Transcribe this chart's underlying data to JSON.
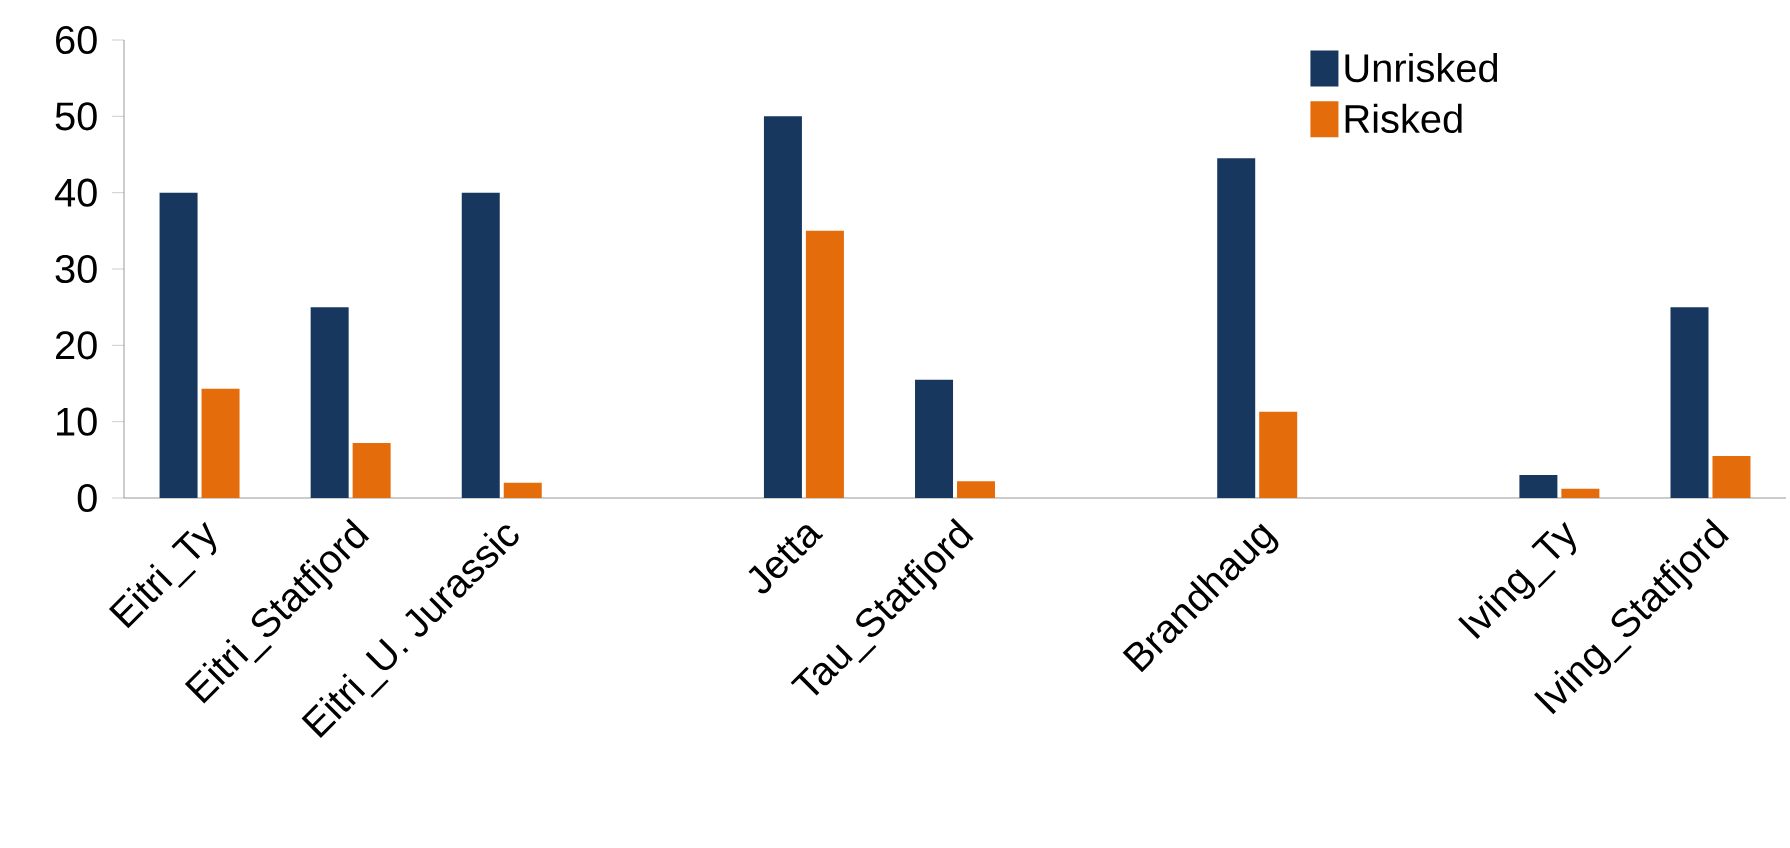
{
  "chart_data": {
    "type": "bar",
    "categories": [
      "Eitri_Ty",
      "Eitri_Statfjord",
      "Eitri_U. Jurassic",
      null,
      "Jetta",
      "Tau_Statfjord",
      null,
      "Brandhaug",
      null,
      "Iving_Ty",
      "Iving_Statfjord"
    ],
    "series": [
      {
        "name": "Unrisked",
        "color": "#17375e",
        "values": [
          40,
          25,
          40,
          null,
          50,
          15.5,
          null,
          44.5,
          null,
          3,
          25
        ]
      },
      {
        "name": "Risked",
        "color": "#e46c0a",
        "values": [
          14.3,
          7.2,
          2,
          null,
          35,
          2.2,
          null,
          11.3,
          null,
          1.2,
          5.5
        ]
      }
    ],
    "ylim": [
      0,
      60
    ],
    "yticks": [
      0,
      10,
      20,
      30,
      40,
      50,
      60
    ],
    "grid": false,
    "legend": "top right"
  }
}
